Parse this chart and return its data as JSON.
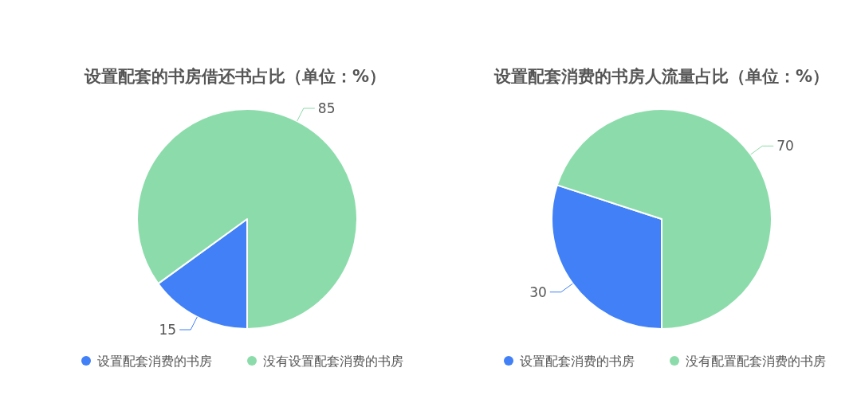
{
  "chart_data": [
    {
      "type": "pie",
      "title": "设置配套的书房借还书占比（单位：%）",
      "categories": [
        "设置配套消费的书房",
        "没有设置配套消费的书房"
      ],
      "values": [
        15,
        85
      ],
      "colors": [
        "#4180f6",
        "#8cdcab"
      ],
      "data_labels": true,
      "legend": "bottom"
    },
    {
      "type": "pie",
      "title": "设置配套消费的书房人流量占比（单位：%）",
      "categories": [
        "设置配套消费的书房",
        "没有配置配套消费的书房"
      ],
      "values": [
        30,
        70
      ],
      "colors": [
        "#4180f6",
        "#8cdcab"
      ],
      "data_labels": true,
      "legend": "bottom"
    }
  ]
}
